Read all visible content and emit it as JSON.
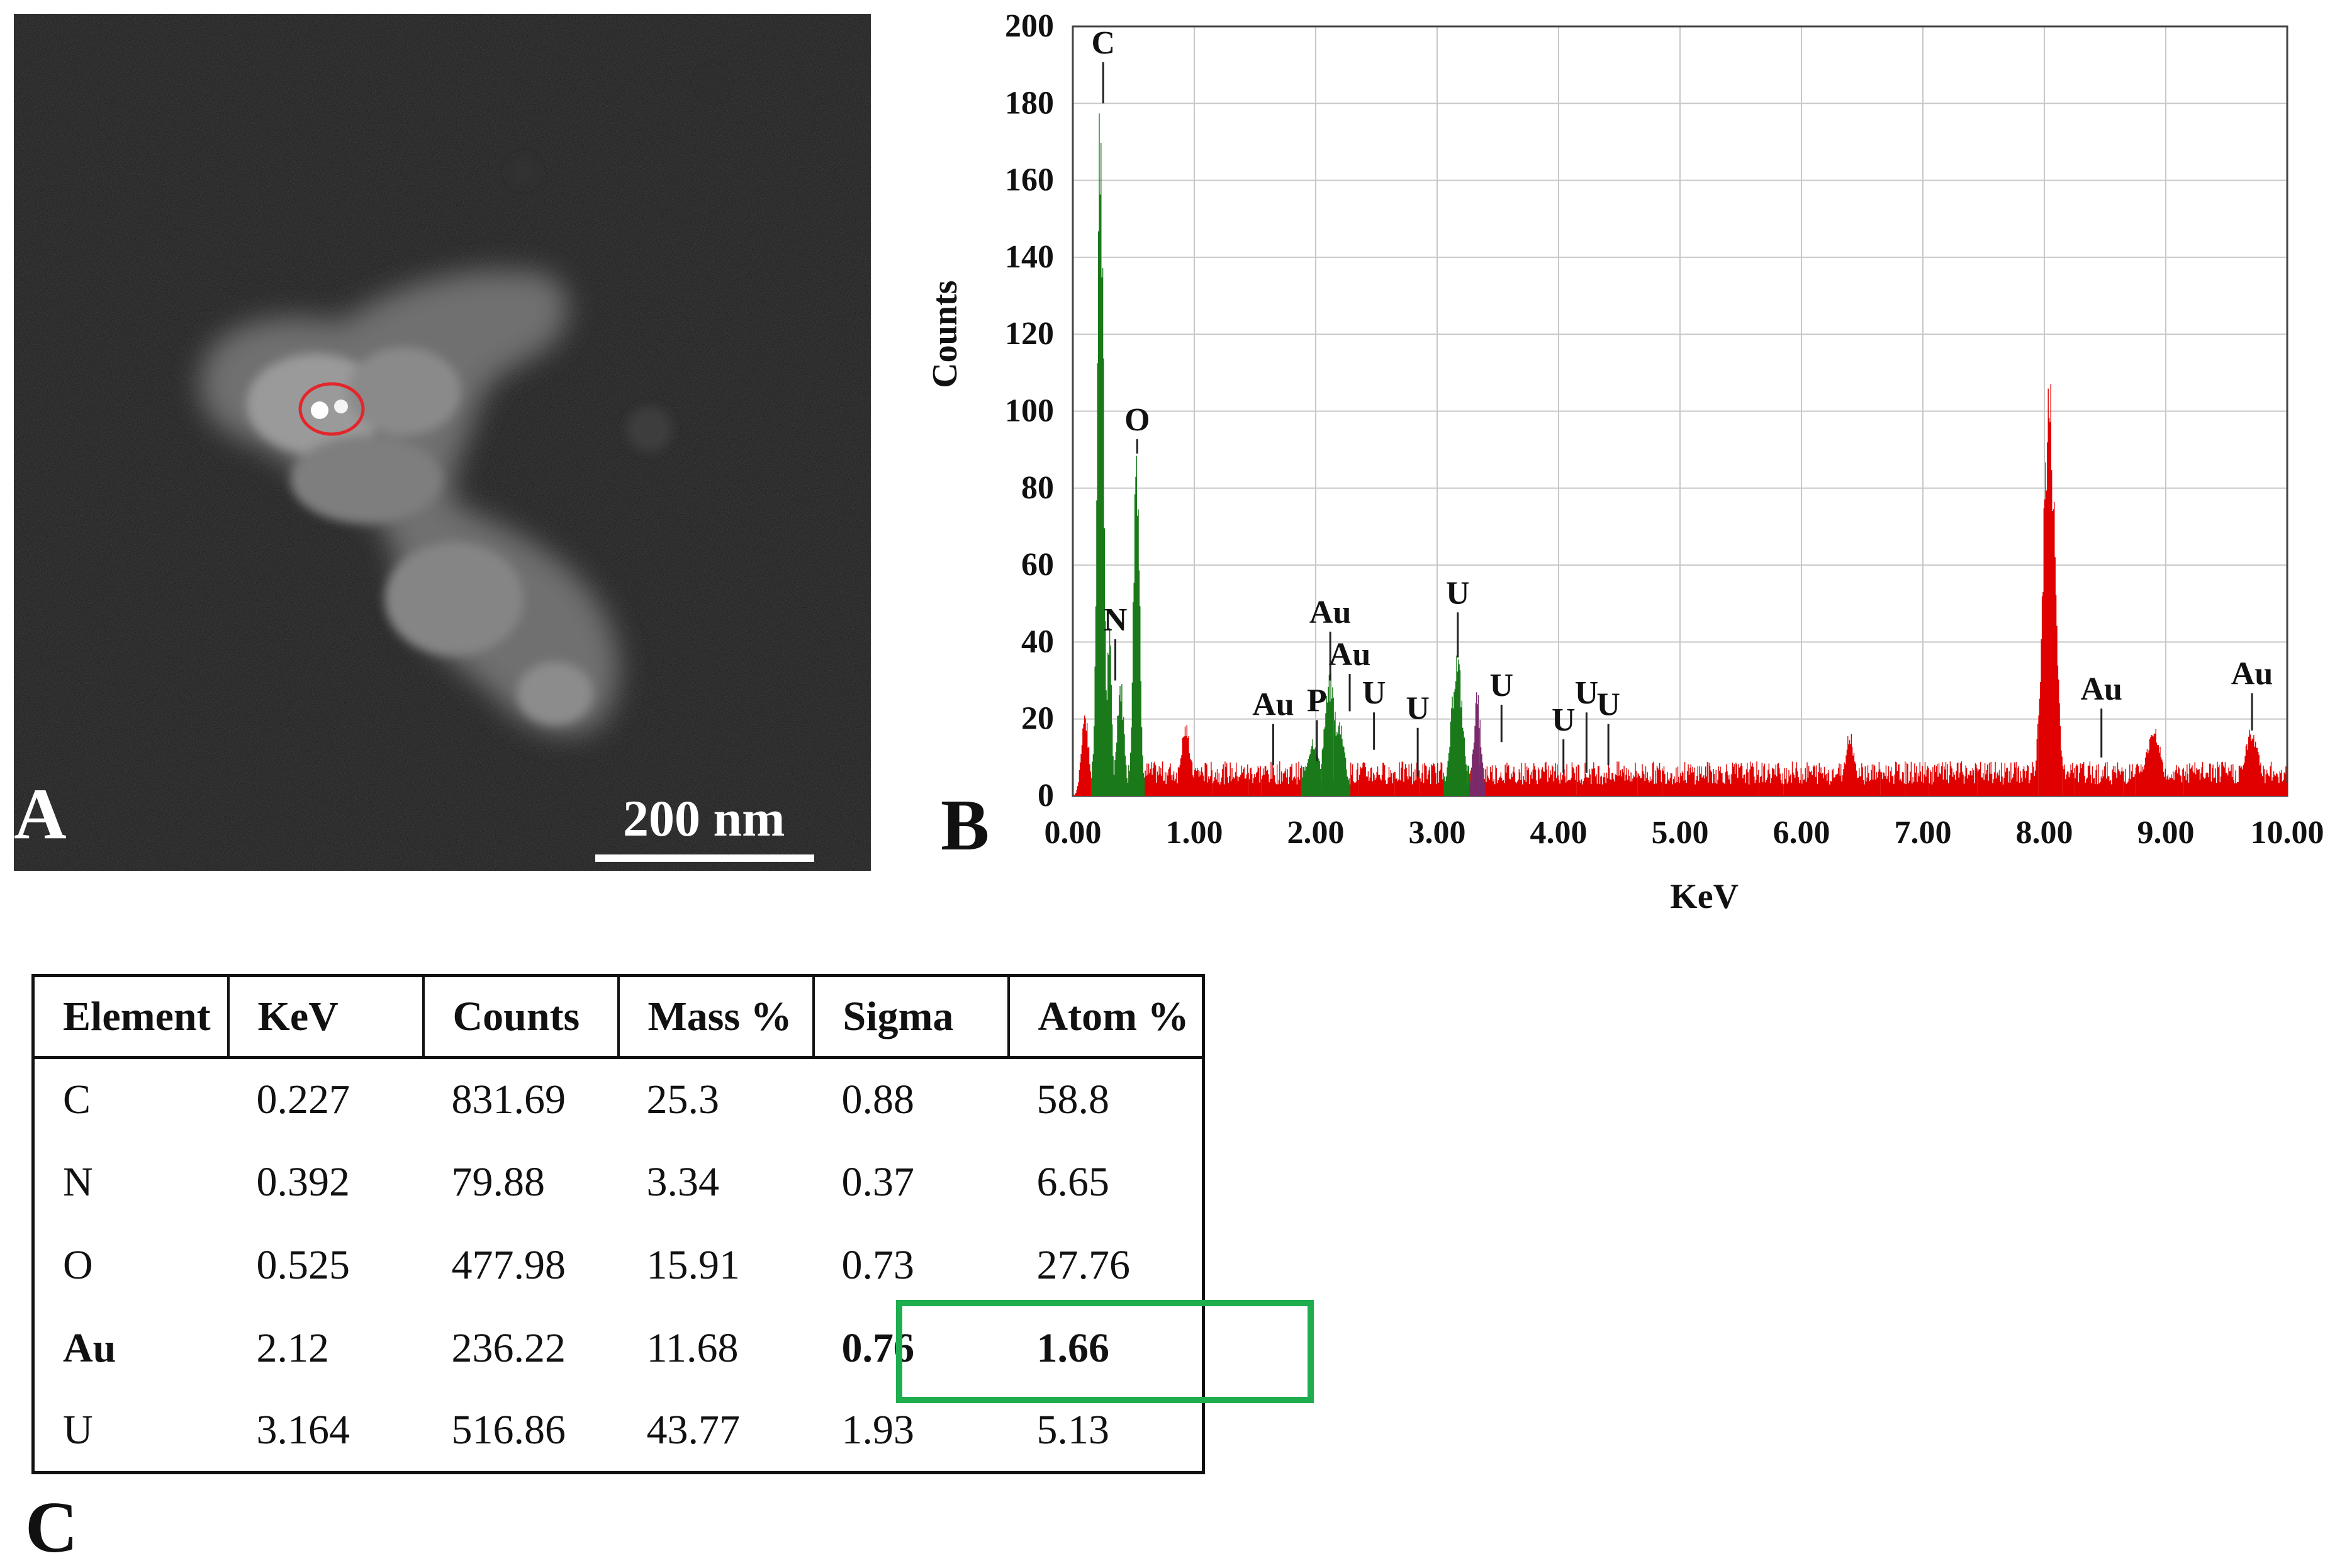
{
  "panel_a": {
    "letter": "A",
    "scale_bar_label": "200 nm"
  },
  "panel_b": {
    "letter": "B"
  },
  "chart_data": {
    "type": "area",
    "xlabel": "KeV",
    "ylabel": "Counts",
    "xlim": [
      0,
      10
    ],
    "ylim": [
      0,
      200
    ],
    "x_ticks": [
      "0.00",
      "1.00",
      "2.00",
      "3.00",
      "4.00",
      "5.00",
      "6.00",
      "7.00",
      "8.00",
      "9.00",
      "10.00"
    ],
    "y_ticks": [
      "0",
      "20",
      "40",
      "60",
      "80",
      "100",
      "120",
      "140",
      "160",
      "180",
      "200"
    ],
    "grid": true,
    "colors": {
      "background_spectrum": "#e00000",
      "identified_peaks": "#1a7a1a",
      "minor_peak": "#7a2a6a"
    },
    "peaks": [
      {
        "x": 0.1,
        "y": 20,
        "width": 0.03,
        "color": "red"
      },
      {
        "x": 0.227,
        "y": 176,
        "width": 0.025,
        "color": "green"
      },
      {
        "x": 0.3,
        "y": 40,
        "width": 0.02,
        "color": "green"
      },
      {
        "x": 0.392,
        "y": 28,
        "width": 0.03,
        "color": "green"
      },
      {
        "x": 0.525,
        "y": 89,
        "width": 0.025,
        "color": "green"
      },
      {
        "x": 0.93,
        "y": 17,
        "width": 0.04,
        "color": "red"
      },
      {
        "x": 1.98,
        "y": 14,
        "width": 0.05,
        "color": "green"
      },
      {
        "x": 2.12,
        "y": 28,
        "width": 0.05,
        "color": "green"
      },
      {
        "x": 2.2,
        "y": 18,
        "width": 0.04,
        "color": "green"
      },
      {
        "x": 3.164,
        "y": 34,
        "width": 0.045,
        "color": "green"
      },
      {
        "x": 3.33,
        "y": 24,
        "width": 0.03,
        "color": "purple"
      },
      {
        "x": 6.4,
        "y": 15,
        "width": 0.04,
        "color": "red"
      },
      {
        "x": 8.04,
        "y": 98,
        "width": 0.05,
        "color": "red"
      },
      {
        "x": 8.9,
        "y": 17,
        "width": 0.06,
        "color": "red"
      },
      {
        "x": 9.71,
        "y": 16,
        "width": 0.06,
        "color": "red"
      }
    ],
    "baseline": 5,
    "annotations": [
      {
        "label": "C",
        "x": 0.25,
        "y": 193,
        "line_bottom": 180
      },
      {
        "label": "O",
        "x": 0.53,
        "y": 95,
        "line_bottom": 89
      },
      {
        "label": "N",
        "x": 0.35,
        "y": 43,
        "line_bottom": 30
      },
      {
        "label": "Au",
        "x": 1.65,
        "y": 21,
        "line_bottom": 8
      },
      {
        "label": "P",
        "x": 2.01,
        "y": 22,
        "line_bottom": 9
      },
      {
        "label": "Au",
        "x": 2.12,
        "y": 45,
        "line_bottom": 30
      },
      {
        "label": "Au",
        "x": 2.28,
        "y": 34,
        "line_bottom": 22
      },
      {
        "label": "U",
        "x": 2.48,
        "y": 24,
        "line_bottom": 12
      },
      {
        "label": "U",
        "x": 2.84,
        "y": 20,
        "line_bottom": 5
      },
      {
        "label": "U",
        "x": 3.17,
        "y": 50,
        "line_bottom": 36
      },
      {
        "label": "U",
        "x": 3.53,
        "y": 26,
        "line_bottom": 14
      },
      {
        "label": "U",
        "x": 4.04,
        "y": 17,
        "line_bottom": 6
      },
      {
        "label": "U",
        "x": 4.23,
        "y": 24,
        "line_bottom": 6
      },
      {
        "label": "U",
        "x": 4.41,
        "y": 21,
        "line_bottom": 8
      },
      {
        "label": "Au",
        "x": 8.47,
        "y": 25,
        "line_bottom": 10
      },
      {
        "label": "Au",
        "x": 9.71,
        "y": 29,
        "line_bottom": 17
      }
    ]
  },
  "table": {
    "headers": [
      "Element",
      "KeV",
      "Counts",
      "Mass %",
      "Sigma",
      "Atom %"
    ],
    "rows": [
      [
        "C",
        "0.227",
        "831.69",
        "25.3",
        "0.88",
        "58.8"
      ],
      [
        "N",
        "0.392",
        "79.88",
        "3.34",
        "0.37",
        "6.65"
      ],
      [
        "O",
        "0.525",
        "477.98",
        "15.91",
        "0.73",
        "27.76"
      ],
      [
        "Au",
        "2.12",
        "236.22",
        "11.68",
        "0.76",
        "1.66"
      ],
      [
        "U",
        "3.164",
        "516.86",
        "43.77",
        "1.93",
        "5.13"
      ]
    ],
    "highlight_color": "#1fad4e"
  },
  "panel_c": {
    "letter": "C"
  }
}
